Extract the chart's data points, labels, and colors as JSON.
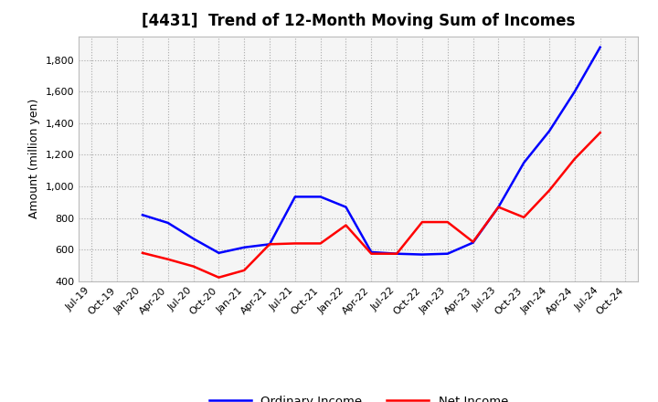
{
  "title": "[4431]  Trend of 12-Month Moving Sum of Incomes",
  "ylabel": "Amount (million yen)",
  "ylim": [
    400,
    1950
  ],
  "yticks": [
    400,
    600,
    800,
    1000,
    1200,
    1400,
    1600,
    1800
  ],
  "background_color": "#ffffff",
  "plot_bg_color": "#f5f5f5",
  "grid_color": "#aaaaaa",
  "x_labels": [
    "Jul-19",
    "Oct-19",
    "Jan-20",
    "Apr-20",
    "Jul-20",
    "Oct-20",
    "Jan-21",
    "Apr-21",
    "Jul-21",
    "Oct-21",
    "Jan-22",
    "Apr-22",
    "Jul-22",
    "Oct-22",
    "Jan-23",
    "Apr-23",
    "Jul-23",
    "Oct-23",
    "Jan-24",
    "Apr-24",
    "Jul-24",
    "Oct-24"
  ],
  "ordinary_income": [
    null,
    null,
    820,
    770,
    670,
    580,
    615,
    635,
    935,
    935,
    870,
    585,
    575,
    570,
    575,
    645,
    870,
    1150,
    1350,
    1600,
    1880,
    null
  ],
  "net_income": [
    null,
    null,
    580,
    540,
    495,
    425,
    470,
    635,
    640,
    640,
    755,
    575,
    575,
    775,
    775,
    650,
    870,
    805,
    975,
    1175,
    1340,
    null
  ],
  "ordinary_income_color": "#0000ff",
  "net_income_color": "#ff0000",
  "legend_labels": [
    "Ordinary Income",
    "Net Income"
  ],
  "title_fontsize": 12,
  "label_fontsize": 9,
  "tick_fontsize": 8
}
